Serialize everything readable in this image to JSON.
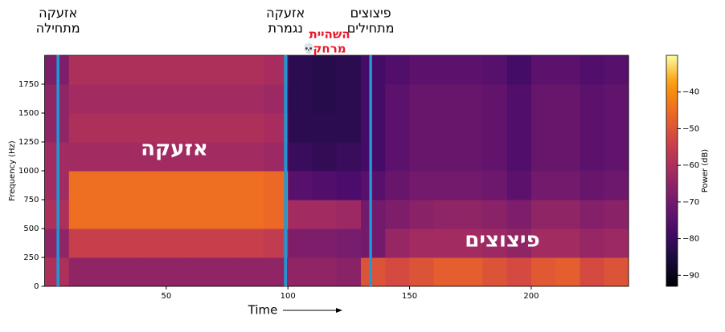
{
  "chart_data": {
    "type": "heatmap",
    "colormap": "inferno",
    "xlabel": "Time",
    "ylabel": "Frequency (Hz)",
    "colorbar_label": "Power (dB)",
    "xbins": [
      0,
      10,
      20,
      30,
      40,
      50,
      60,
      70,
      80,
      90,
      100,
      110,
      120,
      130,
      140,
      150,
      160,
      170,
      180,
      190,
      200,
      210,
      220,
      230,
      240
    ],
    "ybins": [
      0,
      250,
      500,
      750,
      1000,
      1250,
      1500,
      1750,
      2000
    ],
    "values": [
      [
        -60,
        -65,
        -65,
        -65,
        -65,
        -65,
        -65,
        -65,
        -65,
        -65,
        -65,
        -65,
        -66,
        -50,
        -52,
        -50,
        -48,
        -48,
        -50,
        -52,
        -49,
        -48,
        -52,
        -50
      ],
      [
        -65,
        -55,
        -55,
        -55,
        -55,
        -55,
        -55,
        -55,
        -55,
        -56,
        -68,
        -68,
        -69,
        -70,
        -64,
        -62,
        -62,
        -62,
        -63,
        -65,
        -62,
        -62,
        -64,
        -63
      ],
      [
        -60,
        -45,
        -45,
        -45,
        -45,
        -45,
        -45,
        -45,
        -45,
        -46,
        -62,
        -62,
        -63,
        -70,
        -68,
        -66,
        -65,
        -65,
        -66,
        -68,
        -65,
        -65,
        -67,
        -66
      ],
      [
        -62,
        -45,
        -45,
        -45,
        -45,
        -45,
        -45,
        -45,
        -45,
        -46,
        -75,
        -76,
        -77,
        -75,
        -72,
        -70,
        -70,
        -70,
        -71,
        -74,
        -70,
        -70,
        -72,
        -71
      ],
      [
        -62,
        -62,
        -62,
        -62,
        -62,
        -62,
        -62,
        -62,
        -62,
        -63,
        -80,
        -81,
        -80,
        -78,
        -74,
        -72,
        -72,
        -72,
        -73,
        -76,
        -72,
        -72,
        -74,
        -73
      ],
      [
        -65,
        -60,
        -60,
        -60,
        -60,
        -60,
        -60,
        -60,
        -60,
        -61,
        -82,
        -82,
        -82,
        -78,
        -74,
        -72,
        -72,
        -72,
        -73,
        -76,
        -72,
        -72,
        -74,
        -73
      ],
      [
        -65,
        -62,
        -62,
        -62,
        -62,
        -62,
        -62,
        -62,
        -62,
        -63,
        -82,
        -83,
        -82,
        -78,
        -74,
        -72,
        -72,
        -72,
        -73,
        -76,
        -72,
        -72,
        -74,
        -73
      ],
      [
        -68,
        -60,
        -60,
        -60,
        -60,
        -60,
        -60,
        -60,
        -60,
        -61,
        -82,
        -83,
        -82,
        -78,
        -76,
        -74,
        -74,
        -74,
        -75,
        -78,
        -74,
        -74,
        -76,
        -75
      ]
    ],
    "xlim": [
      0,
      240
    ],
    "ylim": [
      0,
      2000
    ],
    "xticks": [
      50,
      100,
      150,
      200
    ],
    "yticks": [
      0,
      250,
      500,
      750,
      1000,
      1250,
      1500,
      1750
    ],
    "clim": [
      -93,
      -30
    ],
    "cticks": [
      {
        "value": -40,
        "label": "−40"
      },
      {
        "value": -50,
        "label": "−50"
      },
      {
        "value": -60,
        "label": "−60"
      },
      {
        "value": -70,
        "label": "−70"
      },
      {
        "value": -80,
        "label": "−80"
      },
      {
        "value": -90,
        "label": "−90"
      }
    ],
    "marker_color": "#1a9bd7",
    "markers": [
      {
        "x": 5.5,
        "lines": [
          "אזעקה",
          "מתחילה"
        ]
      },
      {
        "x": 99,
        "lines": [
          "אזעקה",
          "נגמרת"
        ]
      },
      {
        "x": 134,
        "lines": [
          "פיצוצים",
          "מתחילים"
        ]
      }
    ],
    "note": {
      "lines": [
        "השהיית",
        "מרחק"
      ],
      "icon": "💀",
      "color": "#e8192c"
    },
    "region_labels": [
      "אזעקה",
      "פיצוצים"
    ]
  }
}
